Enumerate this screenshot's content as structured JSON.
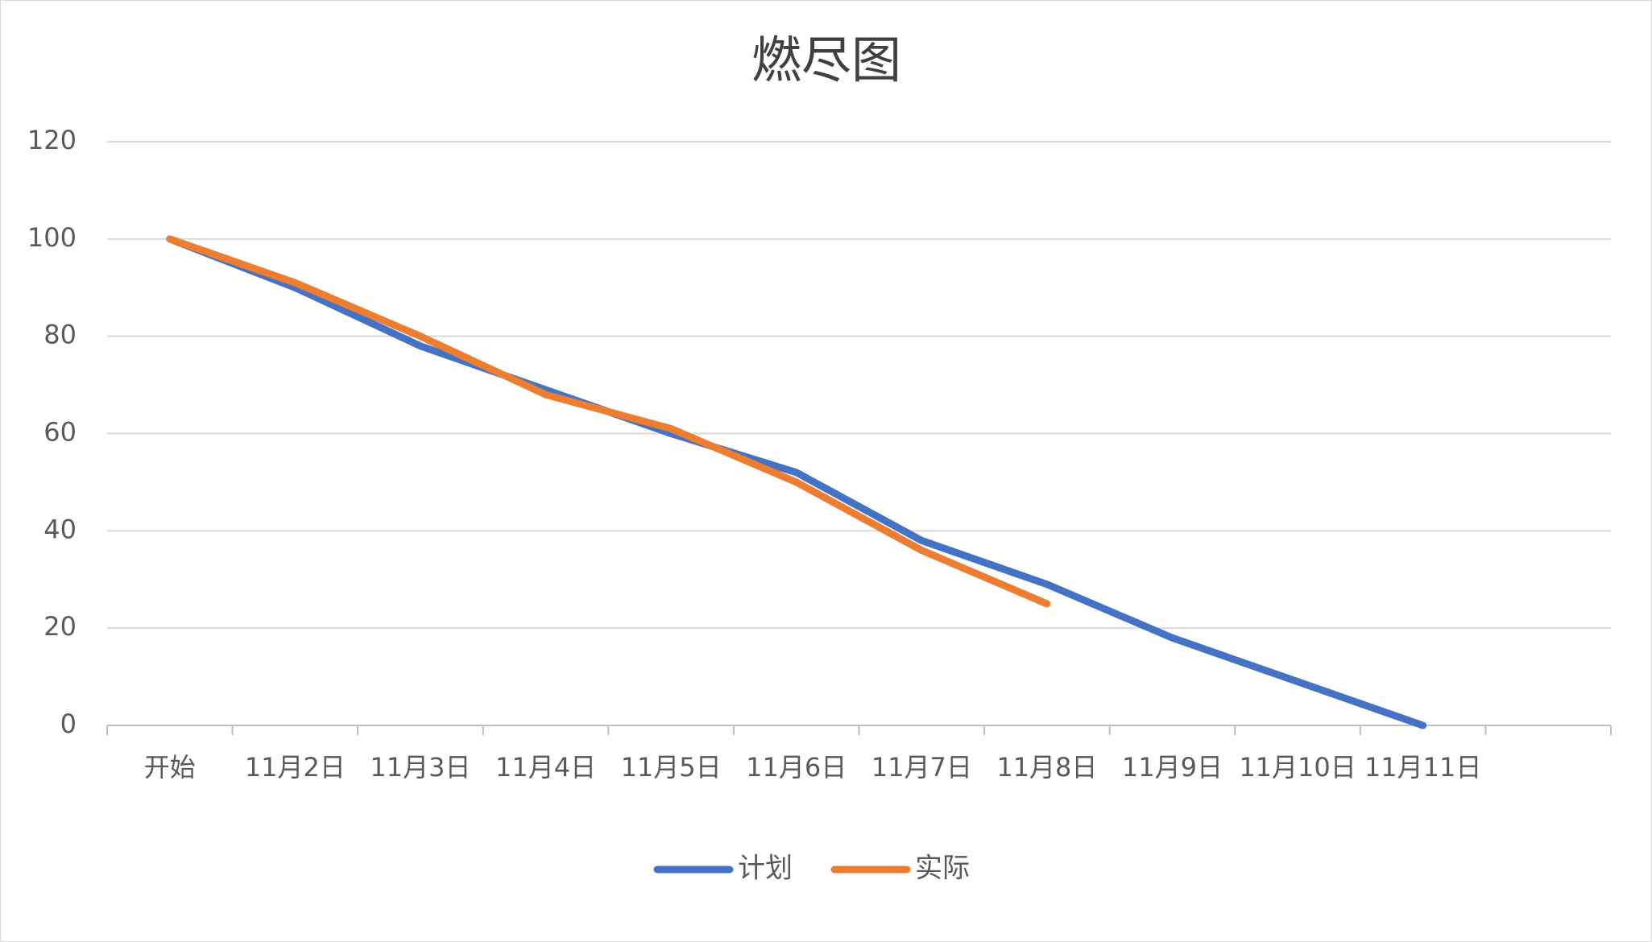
{
  "chart_data": {
    "type": "line",
    "title": "燃尽图",
    "categories": [
      "开始",
      "11月2日",
      "11月3日",
      "11月4日",
      "11月5日",
      "11月6日",
      "11月7日",
      "11月8日",
      "11月9日",
      "11月10日",
      "11月11日",
      null
    ],
    "series": [
      {
        "name": "计划",
        "color": "#4472c4",
        "values": [
          100,
          90,
          78,
          69,
          60,
          52,
          38,
          29,
          18,
          9,
          0,
          null
        ]
      },
      {
        "name": "实际",
        "color": "#ed7d31",
        "values": [
          100,
          91,
          80,
          68,
          61,
          50,
          36,
          25,
          null,
          null,
          null,
          null
        ]
      }
    ],
    "ylim": [
      0,
      120
    ],
    "yticks": [
      0,
      20,
      40,
      60,
      80,
      100,
      120
    ],
    "grid": true,
    "legend": "bottom"
  }
}
